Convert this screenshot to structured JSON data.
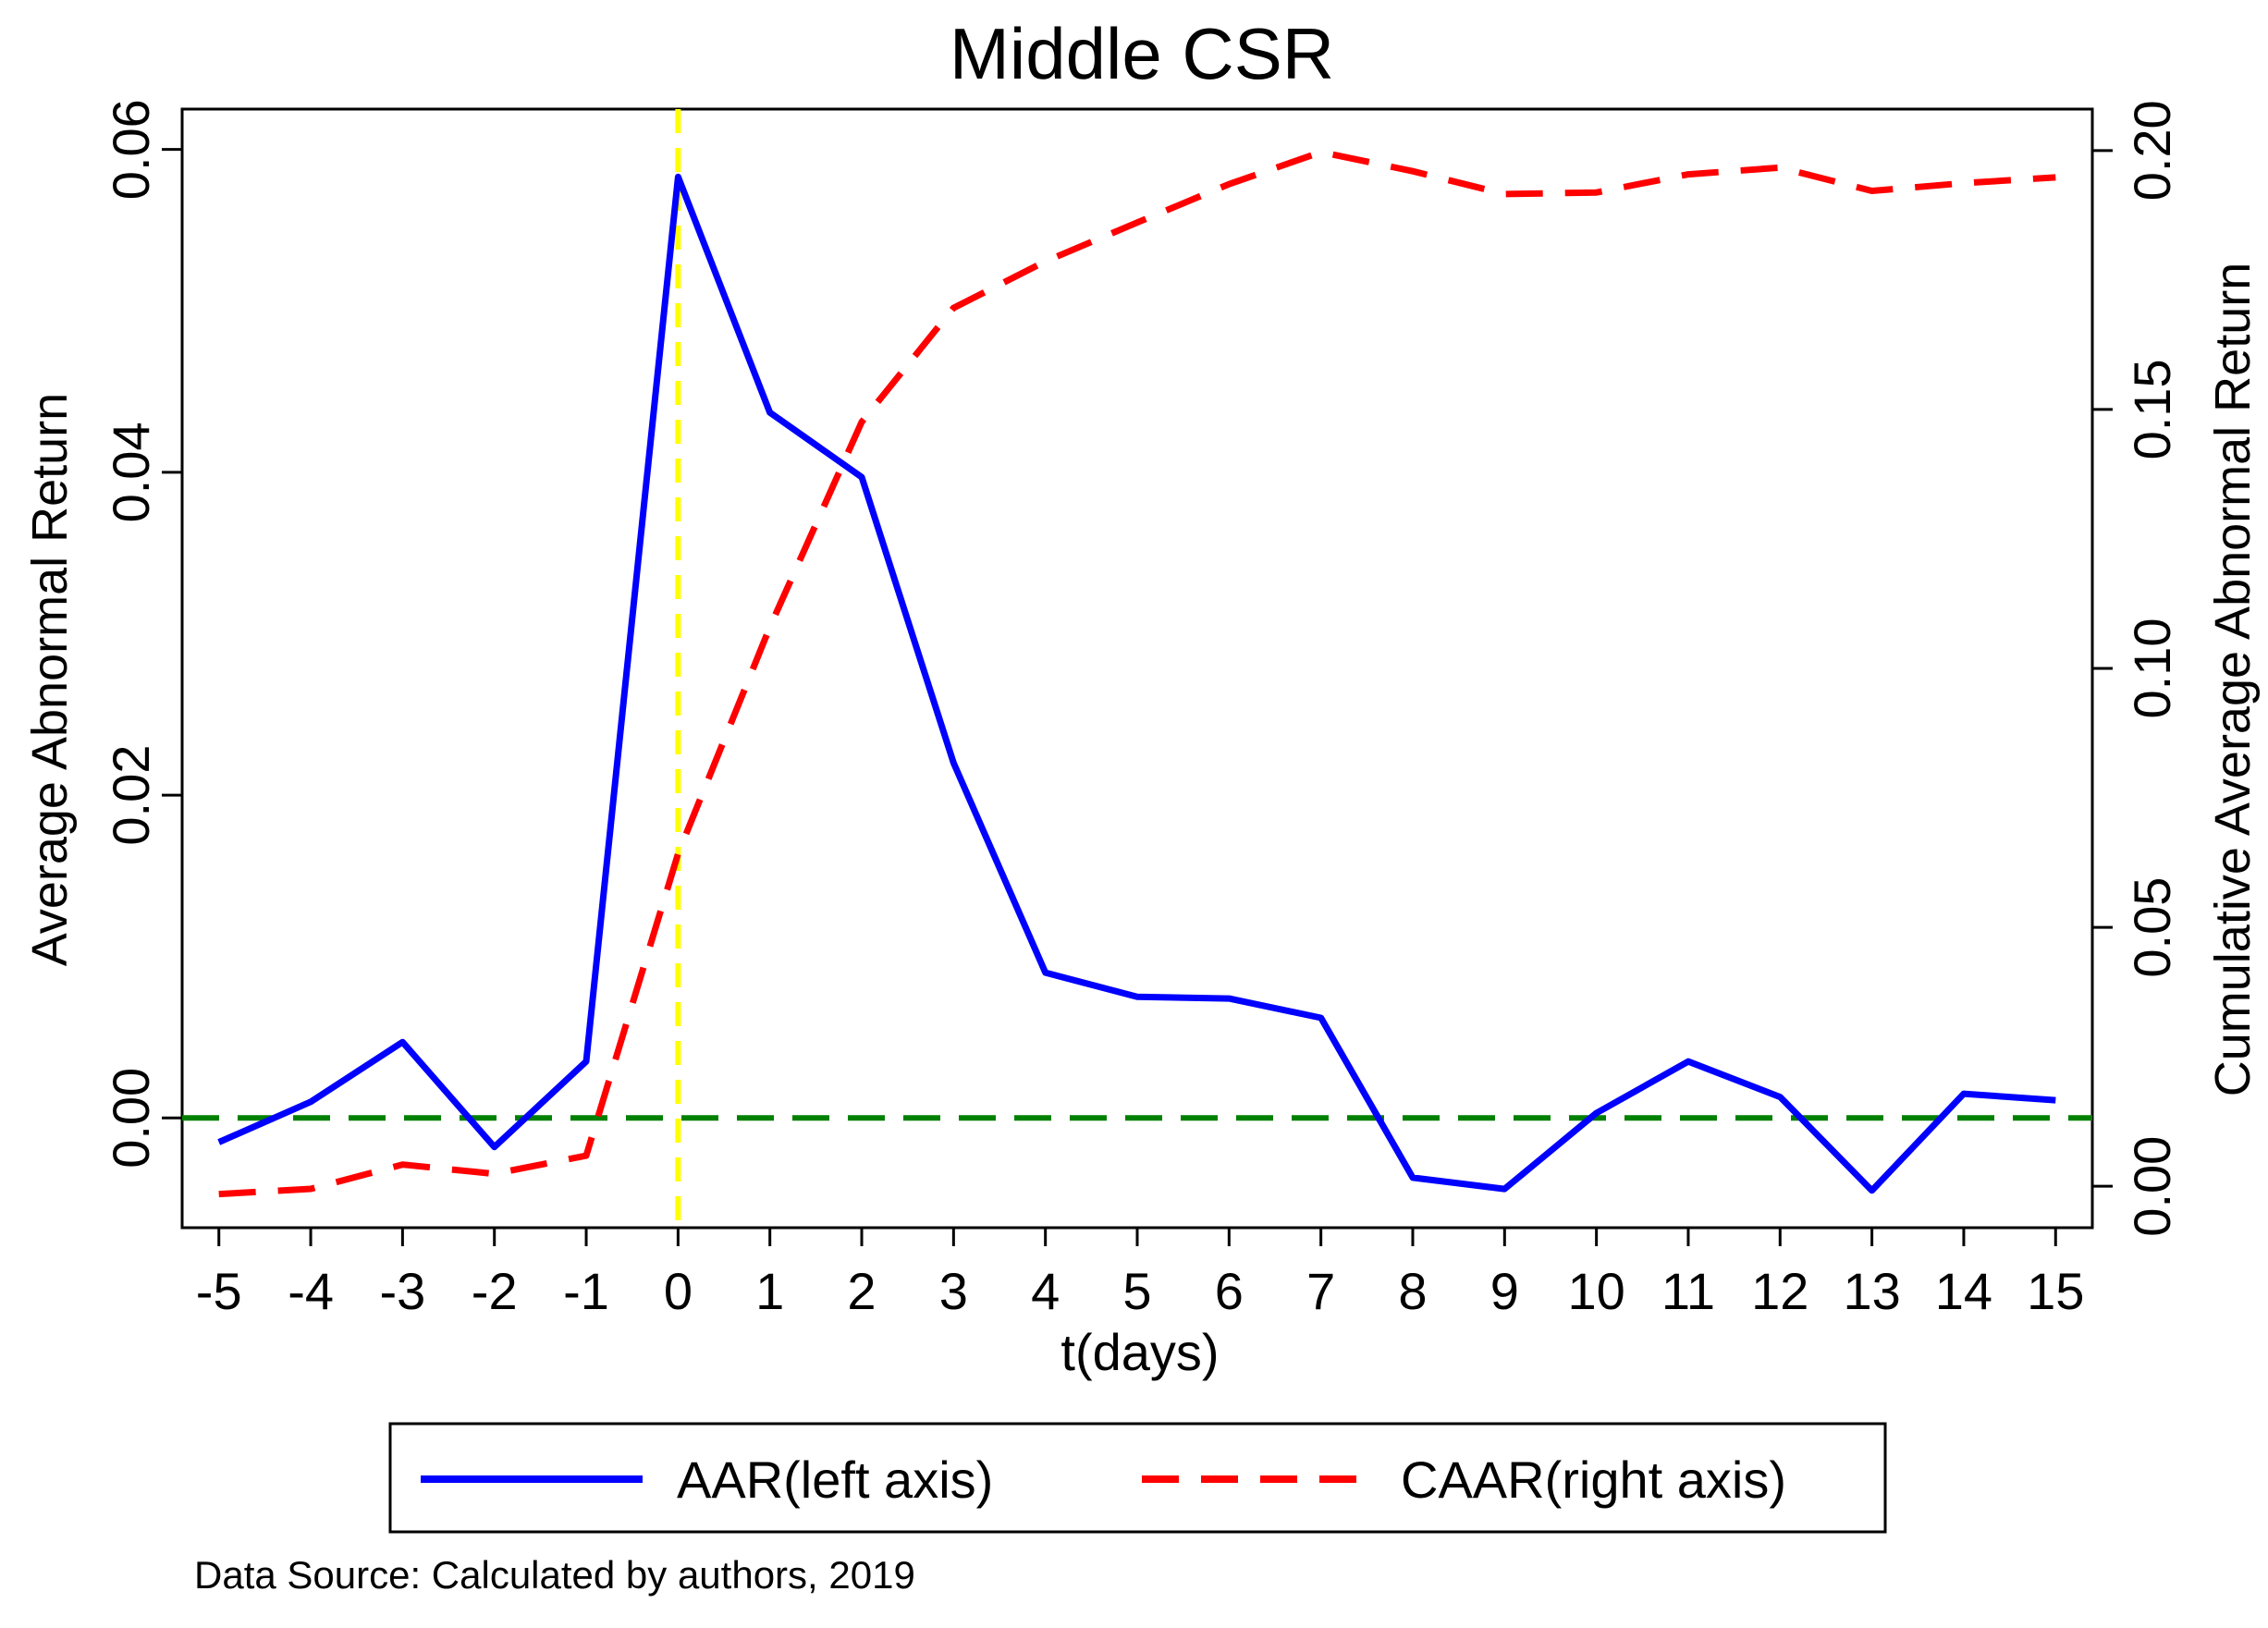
{
  "chart_data": {
    "type": "line",
    "title": "Middle CSR",
    "xlabel": "t(days)",
    "ylabel_left": "Average Abnormal Return",
    "ylabel_right": "Cumulative Average Abnormal Return",
    "x": [
      -5,
      -4,
      -3,
      -2,
      -1,
      0,
      1,
      2,
      3,
      4,
      5,
      6,
      7,
      8,
      9,
      10,
      11,
      12,
      13,
      14,
      15
    ],
    "x_tick_labels": [
      "-5",
      "-4",
      "-3",
      "-2",
      "-1",
      "0",
      "1",
      "2",
      "3",
      "4",
      "5",
      "6",
      "7",
      "8",
      "9",
      "10",
      "11",
      "12",
      "13",
      "14",
      "15"
    ],
    "xlim": [
      -5.4,
      15.4
    ],
    "ylim_left": [
      -0.0068,
      0.0625
    ],
    "ylim_right": [
      -0.008,
      0.208
    ],
    "y_ticks_left": [
      0,
      0.02,
      0.04,
      0.06
    ],
    "y_tick_labels_left": [
      "0.00",
      "0.02",
      "0.04",
      "0.06"
    ],
    "y_ticks_right": [
      0,
      0.05,
      0.1,
      0.15,
      0.2
    ],
    "y_tick_labels_right": [
      "0.00",
      "0.05",
      "0.10",
      "0.15",
      "0.20"
    ],
    "series": [
      {
        "name": "AAR(left axis)",
        "axis": "left",
        "color": "#0000ff",
        "style": "solid",
        "values": [
          -0.0015,
          0.001,
          0.0047,
          -0.0018,
          0.0035,
          0.0583,
          0.0437,
          0.0397,
          0.022,
          0.009,
          0.0075,
          0.0074,
          0.0062,
          -0.0037,
          -0.0044,
          0.0003,
          0.0035,
          0.0013,
          -0.0045,
          0.0015,
          0.0011
        ]
      },
      {
        "name": "CAAR(right axis)",
        "axis": "right",
        "color": "#ff0000",
        "style": "dashed",
        "values": [
          -0.0015,
          -0.0005,
          0.0042,
          0.0024,
          0.0059,
          0.0642,
          0.108,
          0.1476,
          0.1696,
          0.1786,
          0.1861,
          0.1935,
          0.1997,
          0.196,
          0.1916,
          0.1919,
          0.1954,
          0.1967,
          0.1922,
          0.1937,
          0.1948
        ]
      }
    ],
    "reference_lines": [
      {
        "name": "zero-line",
        "axis": "left",
        "y": 0,
        "color": "#008000",
        "style": "dashed"
      },
      {
        "name": "event-day-line",
        "x": 0,
        "color": "#ffff00",
        "style": "dashed"
      }
    ],
    "legend": {
      "position": "bottom",
      "entries": [
        "AAR(left axis)",
        "CAAR(right axis)"
      ]
    }
  },
  "footer": {
    "source": "Data Source: Calculated by authors, 2019"
  }
}
